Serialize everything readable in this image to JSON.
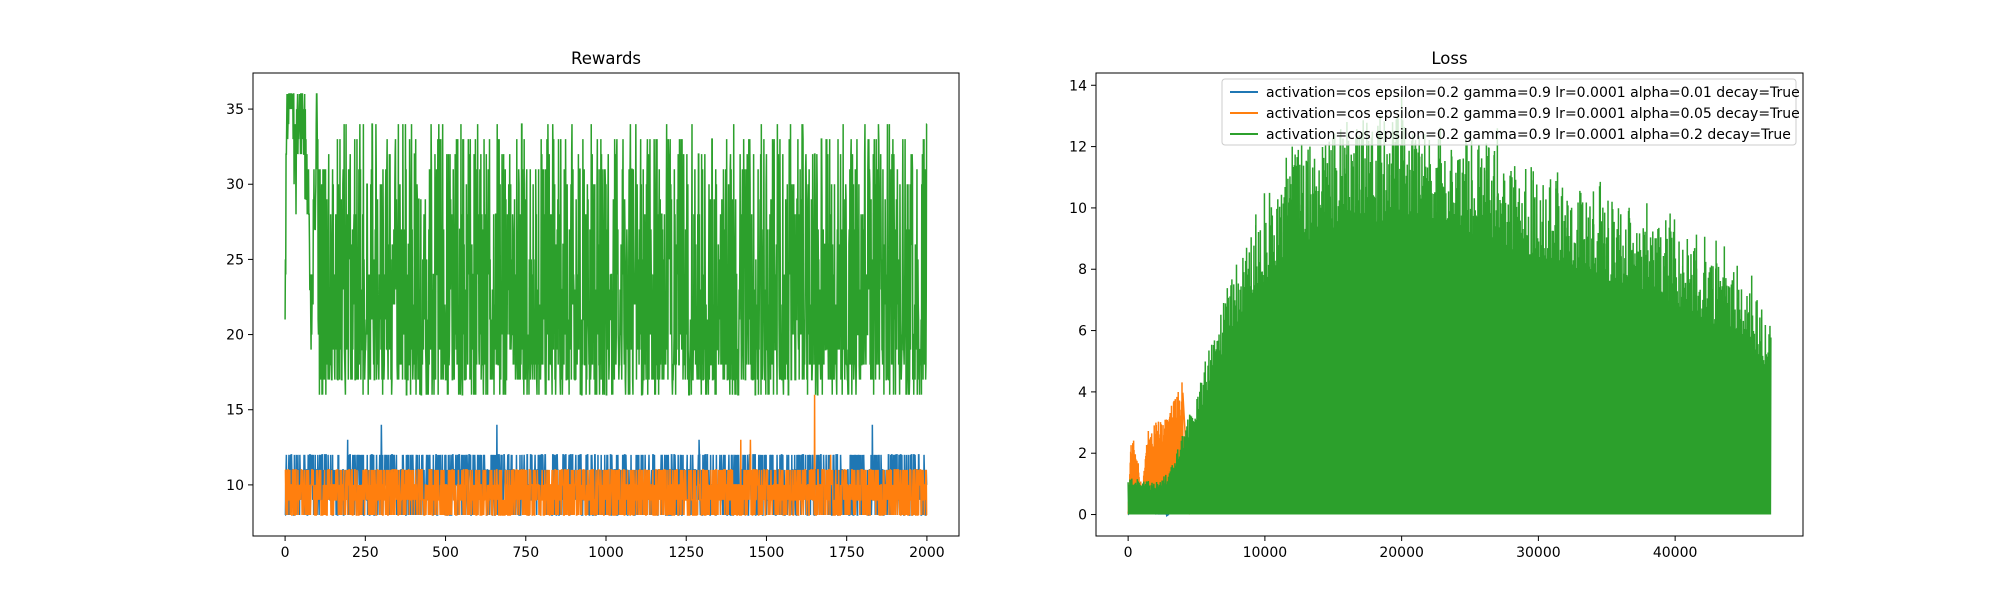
{
  "chart_data": [
    {
      "type": "line",
      "title": "Rewards",
      "xlabel": "",
      "ylabel": "",
      "xlim": [
        -100,
        2100
      ],
      "ylim": [
        6.6,
        37.4
      ],
      "xticks": [
        0,
        250,
        500,
        750,
        1000,
        1250,
        1500,
        1750,
        2000
      ],
      "yticks": [
        10,
        15,
        20,
        25,
        30,
        35
      ],
      "grid": false,
      "x": {
        "start": 0,
        "end": 2000,
        "count": 2001
      },
      "series": [
        {
          "color": "#1f77b4",
          "typical_values": [
            8,
            9,
            10,
            11,
            12
          ],
          "peak_values": [
            {
              "x": 300,
              "y": 14
            },
            {
              "x": 660,
              "y": 14
            },
            {
              "x": 1830,
              "y": 14
            },
            {
              "x": 195,
              "y": 13
            },
            {
              "x": 1290,
              "y": 13
            }
          ],
          "range": [
            8,
            14
          ]
        },
        {
          "color": "#ff7f0e",
          "typical_values": [
            8,
            9,
            10,
            11
          ],
          "peak_values": [
            {
              "x": 1650,
              "y": 16
            },
            {
              "x": 1420,
              "y": 13
            },
            {
              "x": 1450,
              "y": 13
            },
            {
              "x": 1700,
              "y": 12
            }
          ],
          "range": [
            8,
            16
          ]
        },
        {
          "color": "#2ca02c",
          "early_values": [
            {
              "x": 0,
              "y": 21
            },
            {
              "x": 5,
              "y": 34
            },
            {
              "x": 10,
              "y": 36
            },
            {
              "x": 20,
              "y": 36
            },
            {
              "x": 35,
              "y": 32
            },
            {
              "x": 50,
              "y": 36
            },
            {
              "x": 70,
              "y": 30
            },
            {
              "x": 80,
              "y": 21
            },
            {
              "x": 100,
              "y": 34
            }
          ],
          "typical_range": [
            16,
            34
          ],
          "range": [
            16,
            36
          ]
        }
      ]
    },
    {
      "type": "line",
      "title": "Loss",
      "xlabel": "",
      "ylabel": "",
      "xlim": [
        -2350,
        49350
      ],
      "ylim": [
        -0.7,
        14.4
      ],
      "xticks": [
        0,
        10000,
        20000,
        30000,
        40000
      ],
      "yticks": [
        0,
        2,
        4,
        6,
        8,
        10,
        12,
        14
      ],
      "grid": false,
      "legend": {
        "position": "upper right",
        "entries": [
          {
            "label": "activation=cos epsilon=0.2 gamma=0.9 lr=0.0001 alpha=0.01 decay=True",
            "color": "#1f77b4"
          },
          {
            "label": "activation=cos epsilon=0.2 gamma=0.9 lr=0.0001 alpha=0.05 decay=True",
            "color": "#ff7f0e"
          },
          {
            "label": "activation=cos epsilon=0.2 gamma=0.9 lr=0.0001 alpha=0.2 decay=True",
            "color": "#2ca02c"
          }
        ]
      },
      "series": [
        {
          "color": "#1f77b4",
          "x_range": [
            0,
            3000
          ],
          "points": [
            [
              0,
              0.0
            ],
            [
              200,
              1.0
            ],
            [
              600,
              0.6
            ],
            [
              1200,
              0.3
            ],
            [
              2000,
              0.1
            ],
            [
              3000,
              0.0
            ]
          ]
        },
        {
          "color": "#ff7f0e",
          "x_range": [
            0,
            4000
          ],
          "points": [
            [
              0,
              0.1
            ],
            [
              200,
              2.4
            ],
            [
              500,
              2.5
            ],
            [
              1000,
              0.9
            ],
            [
              1500,
              2.9
            ],
            [
              2500,
              3.1
            ],
            [
              3000,
              3.5
            ],
            [
              4000,
              4.4
            ]
          ]
        },
        {
          "color": "#2ca02c",
          "x_range": [
            0,
            47000
          ],
          "baseline": 0,
          "upper_envelope": [
            [
              0,
              1.1
            ],
            [
              2000,
              0.9
            ],
            [
              3000,
              1.2
            ],
            [
              5000,
              3.5
            ],
            [
              7000,
              6.2
            ],
            [
              9000,
              8.2
            ],
            [
              11000,
              9.6
            ],
            [
              13000,
              10.5
            ],
            [
              15000,
              10.9
            ],
            [
              17000,
              11.2
            ],
            [
              20000,
              11.3
            ],
            [
              23000,
              11.0
            ],
            [
              26000,
              10.5
            ],
            [
              29000,
              10.0
            ],
            [
              32000,
              9.6
            ],
            [
              35000,
              9.0
            ],
            [
              38000,
              8.4
            ],
            [
              41000,
              7.8
            ],
            [
              44000,
              7.0
            ],
            [
              46000,
              6.2
            ],
            [
              47000,
              5.3
            ]
          ],
          "peak_values": [
            {
              "x": 20000,
              "y": 13.6
            },
            {
              "x": 16000,
              "y": 12.8
            },
            {
              "x": 27000,
              "y": 12.6
            },
            {
              "x": 12000,
              "y": 12.0
            }
          ],
          "range": [
            0,
            13.6
          ]
        }
      ]
    }
  ]
}
